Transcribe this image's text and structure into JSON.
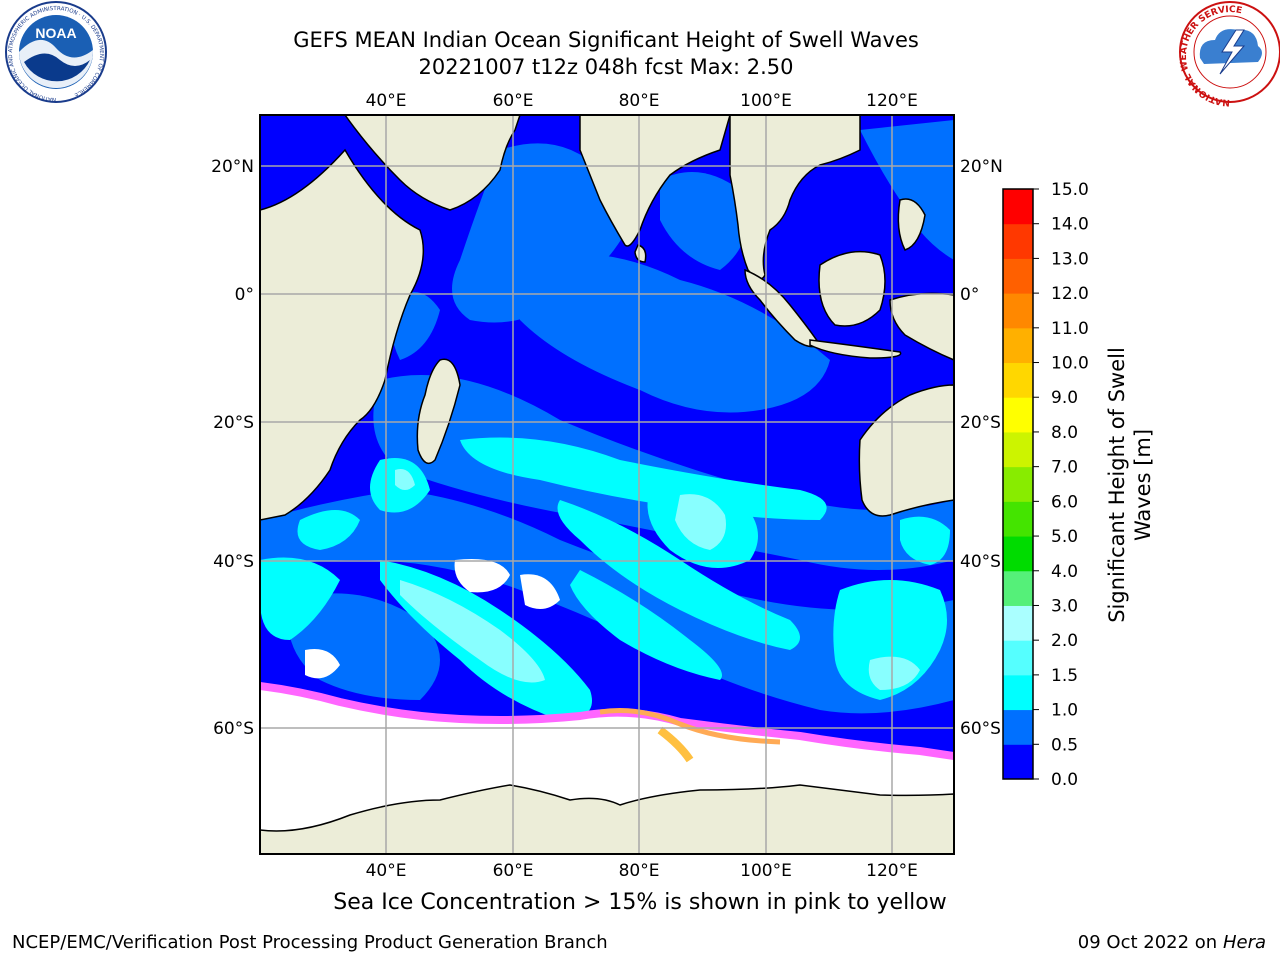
{
  "header": {
    "title_line_1": "GEFS MEAN Indian Ocean Significant Height of Swell Waves",
    "title_line_2": "20221007 t12z 048h fcst   Max: 2.50"
  },
  "logos": {
    "left": "NOAA",
    "left_ring_text": "NATIONAL OCEANIC AND ATMOSPHERIC ADMINISTRATION · U.S. DEPARTMENT OF COMMERCE",
    "right_ring_text": "NATIONAL WEATHER SERVICE"
  },
  "map": {
    "lon_labels": [
      "40°E",
      "60°E",
      "80°E",
      "100°E",
      "120°E"
    ],
    "lat_labels": [
      "20°N",
      "0°",
      "20°S",
      "40°S",
      "60°S"
    ],
    "colors": {
      "land": "#ecedd8",
      "ocean_low": "#0000ff",
      "ocean_mid": "#0070ff",
      "cyan": "#00ffff",
      "light_cyan": "#66ffff",
      "sea_ice": "#ffffff",
      "ice_edge": "#ff66ff"
    }
  },
  "colorbar": {
    "label_line_1": "Significant Height of Swell",
    "label_line_2": "Waves [m]",
    "ticks": [
      "0.0",
      "0.5",
      "1.0",
      "1.5",
      "2.0",
      "3.0",
      "4.0",
      "5.0",
      "6.0",
      "7.0",
      "8.0",
      "9.0",
      "10.0",
      "11.0",
      "12.0",
      "13.0",
      "14.0",
      "15.0"
    ],
    "bin_colors": [
      "#0000ff",
      "#0070ff",
      "#00ffff",
      "#55ffff",
      "#aaffff",
      "#55f079",
      "#00dc00",
      "#44e400",
      "#88ec00",
      "#ccf400",
      "#ffff00",
      "#ffd700",
      "#ffb000",
      "#ff8800",
      "#ff6000",
      "#ff3800",
      "#ff0000"
    ]
  },
  "footer": {
    "caption": "Sea Ice Concentration > 15% is shown in pink to yellow",
    "left": "NCEP/EMC/Verification Post Processing Product Generation Branch",
    "right_prefix": "09 Oct 2022 on ",
    "right_host": "Hera"
  }
}
